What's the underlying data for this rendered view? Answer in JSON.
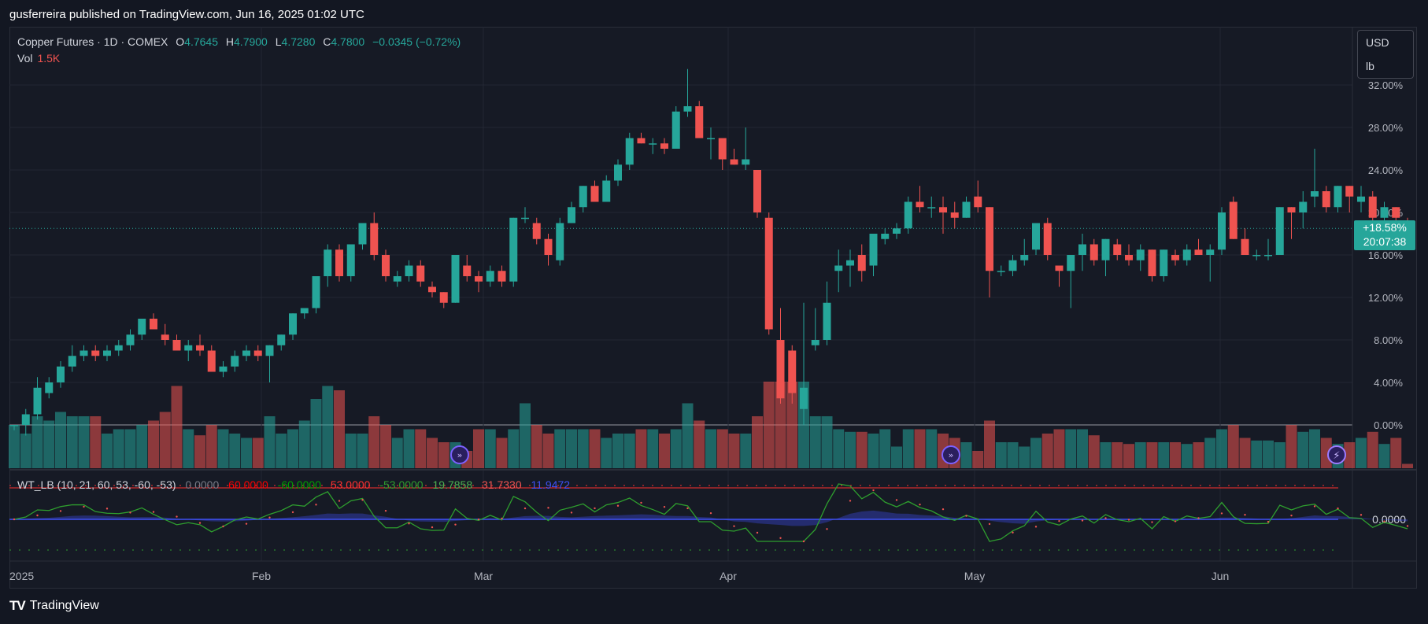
{
  "header": {
    "published": "gusferreira published on TradingView.com, Jun 16, 2025 01:02 UTC"
  },
  "legend": {
    "title": "Copper Futures · 1D · COMEX",
    "open_label": "O",
    "open": "4.7645",
    "high_label": "H",
    "high": "4.7900",
    "low_label": "L",
    "low": "4.7280",
    "close_label": "C",
    "close": "4.7800",
    "change": "−0.0345 (−0.72%)",
    "vol_label": "Vol",
    "vol_value": "1.5K"
  },
  "units": {
    "currency": "USD",
    "unit": "lb"
  },
  "price_tag": {
    "pct": "+18.58%",
    "countdown": "20:07:38"
  },
  "indicator": {
    "name": "WT_LB (10, 21, 60, 53, -60, -53)",
    "v1": "0.0000",
    "v2": "60.0000",
    "v3": "-60.0000",
    "v4": "53.0000",
    "v5": "-53.0000",
    "v6": "19.7858",
    "v7": "31.7330",
    "v8": "11.9472",
    "axis_label": "0.0000"
  },
  "x_axis": [
    "2025",
    "Feb",
    "Mar",
    "Apr",
    "May",
    "Jun"
  ],
  "footer": {
    "brand": "TradingView"
  },
  "colors": {
    "up": "#26a69a",
    "down": "#ef5350",
    "bg": "#161a25",
    "grid": "#232733"
  },
  "chart_data": {
    "type": "candlestick",
    "y_axis_labels": [
      "32.00%",
      "28.00%",
      "24.00%",
      "20.00%",
      "16.00%",
      "12.00%",
      "8.00%",
      "4.00%",
      "0.00%"
    ],
    "ylim_percent": [
      -3.5,
      32
    ],
    "candles_percent_ohlc": [
      [
        0.0,
        0.0,
        -0.5,
        0.0
      ],
      [
        0.0,
        1.5,
        -1.0,
        1.0
      ],
      [
        1.0,
        4.5,
        0.5,
        3.5
      ],
      [
        3.0,
        4.5,
        2.5,
        4.0
      ],
      [
        4.0,
        6.0,
        3.5,
        5.5
      ],
      [
        5.5,
        7.5,
        5.0,
        6.5
      ],
      [
        6.5,
        7.5,
        6.0,
        7.0
      ],
      [
        7.0,
        7.5,
        6.0,
        6.5
      ],
      [
        6.5,
        7.5,
        6.0,
        7.0
      ],
      [
        7.0,
        8.0,
        6.5,
        7.5
      ],
      [
        7.5,
        9.0,
        7.0,
        8.5
      ],
      [
        8.5,
        10.0,
        8.0,
        10.0
      ],
      [
        10.0,
        10.5,
        9.0,
        9.0
      ],
      [
        8.5,
        9.5,
        7.5,
        8.0
      ],
      [
        8.0,
        8.5,
        7.0,
        7.0
      ],
      [
        7.0,
        8.0,
        6.0,
        7.5
      ],
      [
        7.5,
        8.5,
        6.5,
        7.0
      ],
      [
        7.0,
        7.5,
        5.0,
        5.0
      ],
      [
        5.0,
        6.0,
        4.5,
        5.5
      ],
      [
        5.5,
        7.0,
        5.0,
        6.5
      ],
      [
        6.5,
        7.5,
        6.0,
        7.0
      ],
      [
        7.0,
        7.5,
        6.0,
        6.5
      ],
      [
        6.5,
        7.5,
        4.0,
        7.5
      ],
      [
        7.5,
        8.5,
        7.0,
        8.5
      ],
      [
        8.5,
        10.5,
        8.0,
        10.5
      ],
      [
        10.5,
        11.0,
        10.0,
        11.0
      ],
      [
        11.0,
        14.0,
        10.5,
        14.0
      ],
      [
        14.0,
        17.0,
        13.0,
        16.5
      ],
      [
        16.5,
        17.0,
        13.5,
        14.0
      ],
      [
        14.0,
        17.0,
        13.5,
        17.0
      ],
      [
        17.0,
        19.0,
        16.5,
        19.0
      ],
      [
        19.0,
        20.0,
        15.5,
        16.0
      ],
      [
        16.0,
        16.5,
        13.5,
        14.0
      ],
      [
        13.5,
        14.5,
        13.0,
        14.0
      ],
      [
        14.0,
        15.5,
        13.5,
        15.0
      ],
      [
        15.0,
        15.5,
        13.0,
        13.5
      ],
      [
        13.0,
        13.5,
        12.0,
        12.5
      ],
      [
        12.5,
        12.5,
        11.0,
        11.5
      ],
      [
        11.5,
        16.0,
        11.5,
        16.0
      ],
      [
        15.0,
        16.0,
        13.5,
        14.0
      ],
      [
        14.0,
        14.5,
        12.5,
        13.5
      ],
      [
        13.5,
        15.0,
        13.0,
        14.5
      ],
      [
        14.5,
        15.0,
        13.0,
        13.5
      ],
      [
        13.5,
        19.5,
        13.0,
        19.5
      ],
      [
        19.5,
        20.5,
        19.0,
        19.5
      ],
      [
        19.0,
        19.5,
        17.0,
        17.5
      ],
      [
        17.5,
        18.0,
        15.0,
        16.0
      ],
      [
        15.5,
        19.5,
        15.0,
        19.0
      ],
      [
        19.0,
        21.0,
        19.0,
        20.5
      ],
      [
        20.5,
        22.5,
        20.0,
        22.5
      ],
      [
        22.5,
        23.0,
        21.0,
        21.0
      ],
      [
        21.0,
        23.5,
        21.0,
        23.0
      ],
      [
        23.0,
        25.0,
        22.5,
        24.5
      ],
      [
        24.5,
        27.5,
        24.0,
        27.0
      ],
      [
        27.0,
        27.5,
        26.5,
        26.5
      ],
      [
        26.5,
        27.0,
        25.5,
        26.5
      ],
      [
        26.5,
        27.0,
        25.5,
        26.0
      ],
      [
        26.0,
        30.0,
        26.0,
        29.5
      ],
      [
        29.5,
        33.5,
        29.0,
        30.0
      ],
      [
        30.0,
        30.5,
        27.0,
        27.0
      ],
      [
        27.0,
        28.0,
        25.0,
        27.0
      ],
      [
        27.0,
        27.0,
        24.0,
        25.0
      ],
      [
        25.0,
        26.0,
        24.5,
        24.5
      ],
      [
        24.5,
        28.0,
        24.0,
        25.0
      ],
      [
        24.0,
        24.0,
        19.5,
        20.0
      ],
      [
        19.5,
        20.0,
        8.5,
        9.0
      ],
      [
        8.0,
        11.0,
        2.0,
        2.5
      ],
      [
        7.0,
        7.5,
        2.0,
        3.0
      ],
      [
        1.5,
        11.5,
        0.0,
        3.5
      ],
      [
        7.5,
        11.0,
        7.0,
        8.0
      ],
      [
        8.0,
        13.5,
        7.5,
        11.5
      ],
      [
        14.5,
        16.5,
        12.5,
        15.0
      ],
      [
        15.0,
        16.5,
        13.0,
        15.5
      ],
      [
        16.0,
        17.0,
        13.5,
        14.5
      ],
      [
        15.0,
        18.0,
        14.0,
        18.0
      ],
      [
        17.5,
        18.5,
        17.0,
        18.0
      ],
      [
        18.0,
        19.0,
        17.5,
        18.5
      ],
      [
        18.5,
        21.5,
        18.0,
        21.0
      ],
      [
        21.0,
        22.5,
        20.0,
        20.5
      ],
      [
        20.5,
        21.5,
        19.5,
        20.5
      ],
      [
        20.5,
        21.5,
        18.0,
        20.0
      ],
      [
        20.0,
        21.0,
        18.5,
        19.5
      ],
      [
        19.5,
        21.5,
        19.5,
        21.0
      ],
      [
        21.5,
        23.0,
        20.0,
        20.5
      ],
      [
        20.5,
        20.5,
        12.0,
        14.5
      ],
      [
        14.5,
        15.0,
        14.0,
        14.5
      ],
      [
        14.5,
        16.0,
        14.0,
        15.5
      ],
      [
        15.5,
        17.5,
        15.0,
        16.0
      ],
      [
        16.5,
        19.0,
        16.0,
        19.0
      ],
      [
        19.0,
        19.5,
        15.5,
        16.0
      ],
      [
        15.0,
        15.0,
        13.0,
        14.5
      ],
      [
        14.5,
        16.0,
        11.0,
        16.0
      ],
      [
        16.0,
        18.0,
        14.5,
        17.0
      ],
      [
        17.0,
        17.5,
        15.0,
        15.5
      ],
      [
        15.5,
        17.5,
        14.0,
        17.5
      ],
      [
        17.0,
        17.5,
        15.5,
        16.0
      ],
      [
        16.0,
        17.0,
        15.0,
        15.5
      ],
      [
        15.5,
        17.0,
        14.5,
        16.5
      ],
      [
        16.5,
        16.5,
        13.5,
        14.0
      ],
      [
        14.0,
        16.5,
        13.5,
        16.5
      ],
      [
        16.0,
        16.5,
        15.0,
        15.5
      ],
      [
        15.5,
        17.0,
        15.0,
        16.5
      ],
      [
        16.5,
        17.5,
        16.0,
        16.0
      ],
      [
        16.0,
        17.0,
        13.5,
        16.5
      ],
      [
        16.5,
        20.5,
        16.0,
        20.0
      ],
      [
        21.0,
        21.5,
        17.5,
        17.5
      ],
      [
        17.5,
        18.5,
        16.0,
        16.0
      ],
      [
        16.0,
        16.5,
        15.5,
        16.0
      ],
      [
        16.0,
        17.5,
        15.5,
        16.0
      ],
      [
        16.0,
        20.5,
        16.0,
        20.5
      ],
      [
        20.5,
        20.5,
        17.5,
        20.0
      ],
      [
        20.0,
        22.0,
        18.5,
        21.0
      ],
      [
        21.5,
        26.0,
        20.5,
        22.0
      ],
      [
        22.0,
        22.5,
        20.0,
        20.5
      ],
      [
        20.5,
        22.5,
        20.0,
        22.5
      ],
      [
        22.5,
        22.5,
        20.0,
        21.5
      ],
      [
        21.0,
        22.5,
        20.0,
        21.5
      ],
      [
        21.5,
        22.0,
        19.0,
        19.5
      ],
      [
        19.5,
        21.0,
        19.0,
        20.5
      ],
      [
        20.5,
        20.5,
        16.5,
        19.5
      ],
      [
        19.0,
        19.5,
        18.0,
        18.5
      ]
    ],
    "volume_relative": [
      0.5,
      0.4,
      0.6,
      0.55,
      0.65,
      0.6,
      0.6,
      0.6,
      0.4,
      0.45,
      0.45,
      0.5,
      0.55,
      0.65,
      0.95,
      0.45,
      0.38,
      0.5,
      0.45,
      0.4,
      0.35,
      0.35,
      0.6,
      0.4,
      0.45,
      0.55,
      0.8,
      0.95,
      0.9,
      0.4,
      0.4,
      0.6,
      0.5,
      0.35,
      0.45,
      0.45,
      0.35,
      0.3,
      0.3,
      0.2,
      0.45,
      0.45,
      0.35,
      0.45,
      0.75,
      0.5,
      0.4,
      0.45,
      0.45,
      0.45,
      0.45,
      0.35,
      0.4,
      0.4,
      0.45,
      0.45,
      0.4,
      0.45,
      0.75,
      0.55,
      0.45,
      0.45,
      0.4,
      0.4,
      0.6,
      1.0,
      1.0,
      1.0,
      1.0,
      0.6,
      0.6,
      0.45,
      0.42,
      0.42,
      0.4,
      0.45,
      0.25,
      0.45,
      0.45,
      0.45,
      0.4,
      0.35,
      0.3,
      0.2,
      0.55,
      0.3,
      0.3,
      0.25,
      0.35,
      0.4,
      0.45,
      0.45,
      0.45,
      0.38,
      0.3,
      0.3,
      0.28,
      0.3,
      0.3,
      0.3,
      0.3,
      0.28,
      0.3,
      0.35,
      0.45,
      0.5,
      0.35,
      0.32,
      0.32,
      0.3,
      0.5,
      0.42,
      0.45,
      0.35,
      0.28,
      0.3,
      0.35,
      0.42,
      0.28,
      0.35,
      0.05
    ]
  }
}
